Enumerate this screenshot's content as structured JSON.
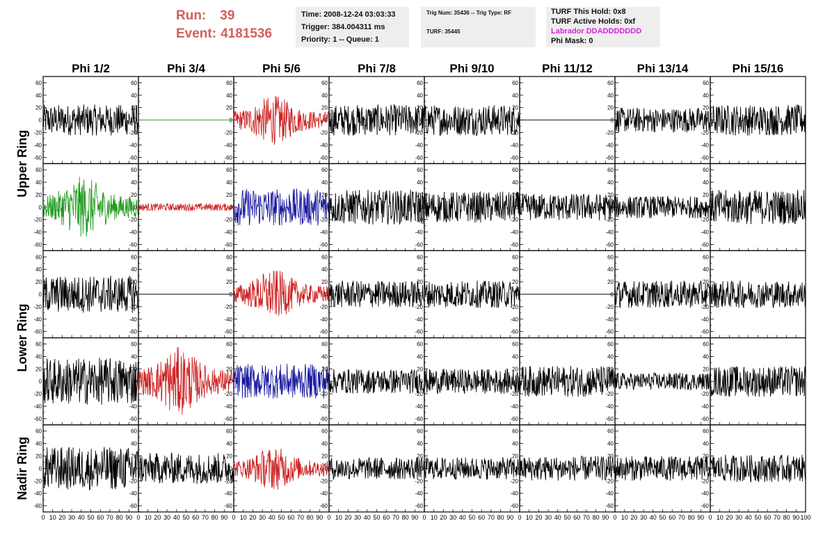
{
  "header": {
    "run_label": "Run:",
    "run_value": "39",
    "event_label": "Event:",
    "event_value": "4181536"
  },
  "info": {
    "time": "Time: 2008-12-24 03:03:33",
    "trigger": "Trigger: 384.004311 ms",
    "priority": "Priority: 1 -- Queue: 1",
    "trig_num": "Trig Num: 35436 -- Trig Type: RF",
    "turf": "TURF: 35445",
    "turf_this_hold": "TURF This Hold: 0x8",
    "turf_active_holds": "TURF Active Holds: 0xf",
    "labrador": "Labrador DDADDDDDDD",
    "phi_mask": "Phi Mask: 0"
  },
  "colors": {
    "header_red": "#d0605a",
    "labrador_magenta": "#e01fe0",
    "trace_black": "#000000",
    "trace_red": "#cc2222",
    "trace_blue": "#1a1aa0",
    "trace_green": "#1f9a1f"
  },
  "chart_data": {
    "type": "line",
    "column_titles": [
      "Phi 1/2",
      "Phi 3/4",
      "Phi 5/6",
      "Phi 7/8",
      "Phi 9/10",
      "Phi 11/12",
      "Phi 13/14",
      "Phi 15/16"
    ],
    "ring_labels": [
      "Upper Ring",
      "Lower Ring",
      "Nadir Ring"
    ],
    "xlim": [
      0,
      100
    ],
    "ylim": [
      -70,
      70
    ],
    "x_ticks": [
      0,
      10,
      20,
      30,
      40,
      50,
      60,
      70,
      80,
      90
    ],
    "x_tick_labels_last": [
      "0",
      "10",
      "20",
      "30",
      "40",
      "50",
      "60",
      "70",
      "80",
      "90",
      "100"
    ],
    "y_ticks": [
      -60,
      -40,
      -20,
      0,
      20,
      40,
      60
    ],
    "rows": [
      [
        {
          "color": "black",
          "amplitude": 25,
          "shape": "noise"
        },
        {
          "color": "green",
          "amplitude": 0,
          "shape": "flat"
        },
        {
          "color": "red",
          "amplitude": 40,
          "shape": "burst"
        },
        {
          "color": "black",
          "amplitude": 25,
          "shape": "noise"
        },
        {
          "color": "black",
          "amplitude": 25,
          "shape": "noise"
        },
        {
          "color": "black",
          "amplitude": 0,
          "shape": "flat"
        },
        {
          "color": "black",
          "amplitude": 20,
          "shape": "noise"
        },
        {
          "color": "black",
          "amplitude": 25,
          "shape": "noise"
        }
      ],
      [
        {
          "color": "green",
          "amplitude": 50,
          "shape": "burst"
        },
        {
          "color": "red",
          "amplitude": 6,
          "shape": "noise"
        },
        {
          "color": "blue",
          "amplitude": 30,
          "shape": "noise"
        },
        {
          "color": "black",
          "amplitude": 28,
          "shape": "noise"
        },
        {
          "color": "black",
          "amplitude": 25,
          "shape": "noise"
        },
        {
          "color": "black",
          "amplitude": 22,
          "shape": "noise"
        },
        {
          "color": "black",
          "amplitude": 18,
          "shape": "noise"
        },
        {
          "color": "black",
          "amplitude": 28,
          "shape": "noise"
        }
      ],
      [
        {
          "color": "black",
          "amplitude": 30,
          "shape": "noise"
        },
        {
          "color": "black",
          "amplitude": 0,
          "shape": "flat"
        },
        {
          "color": "red",
          "amplitude": 40,
          "shape": "burst"
        },
        {
          "color": "black",
          "amplitude": 22,
          "shape": "noise"
        },
        {
          "color": "black",
          "amplitude": 22,
          "shape": "noise"
        },
        {
          "color": "black",
          "amplitude": 0,
          "shape": "flat"
        },
        {
          "color": "black",
          "amplitude": 22,
          "shape": "noise"
        },
        {
          "color": "black",
          "amplitude": 22,
          "shape": "noise"
        }
      ],
      [
        {
          "color": "black",
          "amplitude": 38,
          "shape": "noise"
        },
        {
          "color": "red",
          "amplitude": 55,
          "shape": "burst"
        },
        {
          "color": "blue",
          "amplitude": 28,
          "shape": "noise"
        },
        {
          "color": "black",
          "amplitude": 20,
          "shape": "noise"
        },
        {
          "color": "black",
          "amplitude": 20,
          "shape": "noise"
        },
        {
          "color": "black",
          "amplitude": 25,
          "shape": "noise"
        },
        {
          "color": "black",
          "amplitude": 14,
          "shape": "noise"
        },
        {
          "color": "black",
          "amplitude": 25,
          "shape": "noise"
        }
      ],
      [
        {
          "color": "black",
          "amplitude": 35,
          "shape": "noise"
        },
        {
          "color": "black",
          "amplitude": 25,
          "shape": "noise"
        },
        {
          "color": "red",
          "amplitude": 35,
          "shape": "burst"
        },
        {
          "color": "black",
          "amplitude": 18,
          "shape": "noise"
        },
        {
          "color": "black",
          "amplitude": 18,
          "shape": "noise"
        },
        {
          "color": "black",
          "amplitude": 20,
          "shape": "noise"
        },
        {
          "color": "black",
          "amplitude": 20,
          "shape": "noise"
        },
        {
          "color": "black",
          "amplitude": 22,
          "shape": "noise"
        }
      ]
    ]
  }
}
